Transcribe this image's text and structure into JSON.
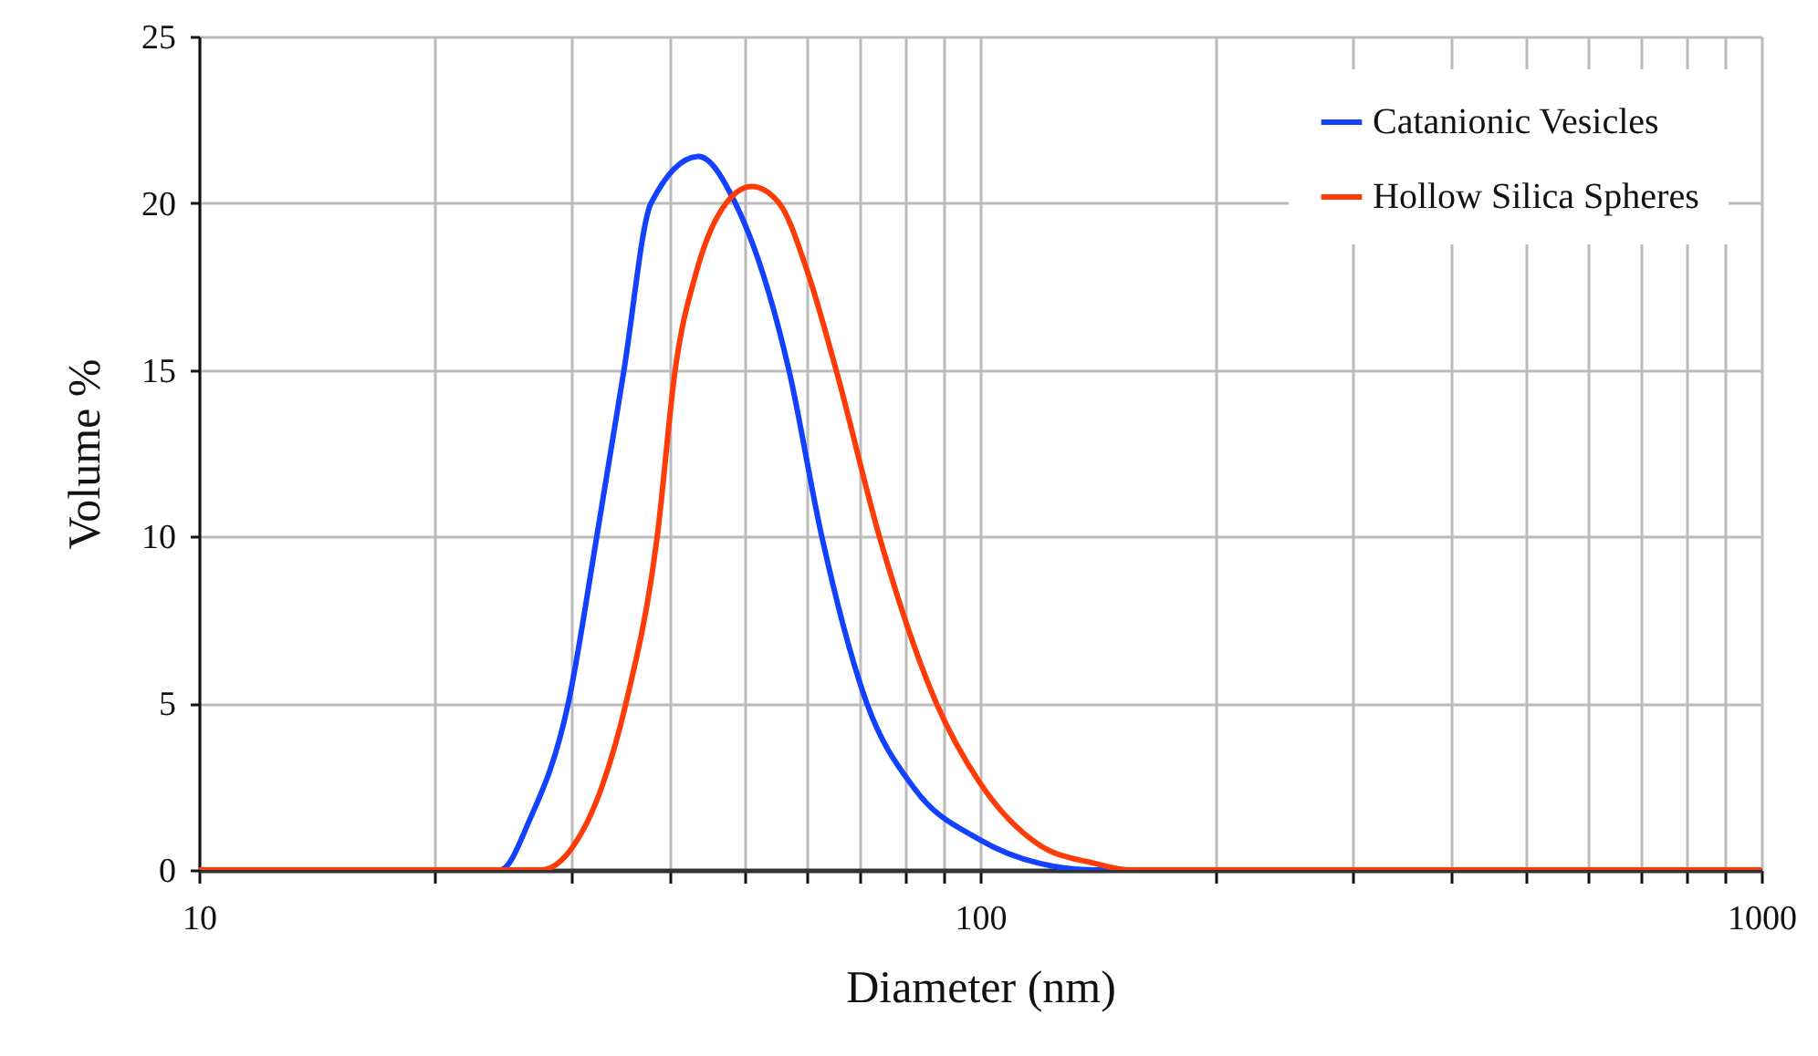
{
  "chart_data": {
    "type": "line",
    "xlabel": "Diameter (nm)",
    "ylabel": "Volume %",
    "log": "x",
    "xlim": [
      10,
      1000
    ],
    "ylim": [
      0,
      25
    ],
    "xticks": [
      10,
      {
        "value": 20,
        "label": null
      },
      {
        "value": 30,
        "label": null
      },
      {
        "value": 40,
        "label": null
      },
      {
        "value": 50,
        "label": null
      },
      {
        "value": 60,
        "label": null
      },
      {
        "value": 70,
        "label": null
      },
      {
        "value": 80,
        "label": null
      },
      {
        "value": 90,
        "label": null
      },
      100,
      {
        "value": 200,
        "label": null
      },
      {
        "value": 300,
        "label": null
      },
      {
        "value": 400,
        "label": null
      },
      {
        "value": 500,
        "label": null
      },
      {
        "value": 600,
        "label": null
      },
      {
        "value": 700,
        "label": null
      },
      {
        "value": 800,
        "label": null
      },
      {
        "value": 900,
        "label": null
      },
      1000
    ],
    "yticks": [
      0,
      5,
      10,
      15,
      20,
      25
    ],
    "grid": true,
    "legend": "top right",
    "marker": "none",
    "line_style": "solid",
    "series": [
      {
        "name": "Catanionic Vesicles",
        "color": "#1241ff",
        "x": [
          10,
          24.3,
          26.5,
          29.7,
          32.3,
          35.0,
          37.9,
          43.6,
          48.6,
          56.9,
          62.7,
          71.6,
          82.0,
          100,
          119,
          140,
          1000
        ],
        "values": [
          0,
          0,
          1.5,
          5,
          10,
          15,
          20,
          21.4,
          20,
          15,
          10,
          5,
          2.5,
          0.9,
          0.2,
          0,
          0
        ]
      },
      {
        "name": "Hollow Silica Spheres",
        "color": "#ff3b07",
        "x": [
          10,
          27.4,
          30,
          32.8,
          35.2,
          38.6,
          40.7,
          43.4,
          47.3,
          51.0,
          55.3,
          60.0,
          65.4,
          74.3,
          87.9,
          100,
          119,
          140,
          156,
          1000
        ],
        "values": [
          0,
          0,
          0.65,
          2.5,
          5,
          10,
          15,
          18,
          20,
          20.5,
          20,
          18,
          15,
          10,
          5,
          2.6,
          0.75,
          0.2,
          0,
          0
        ]
      }
    ]
  }
}
